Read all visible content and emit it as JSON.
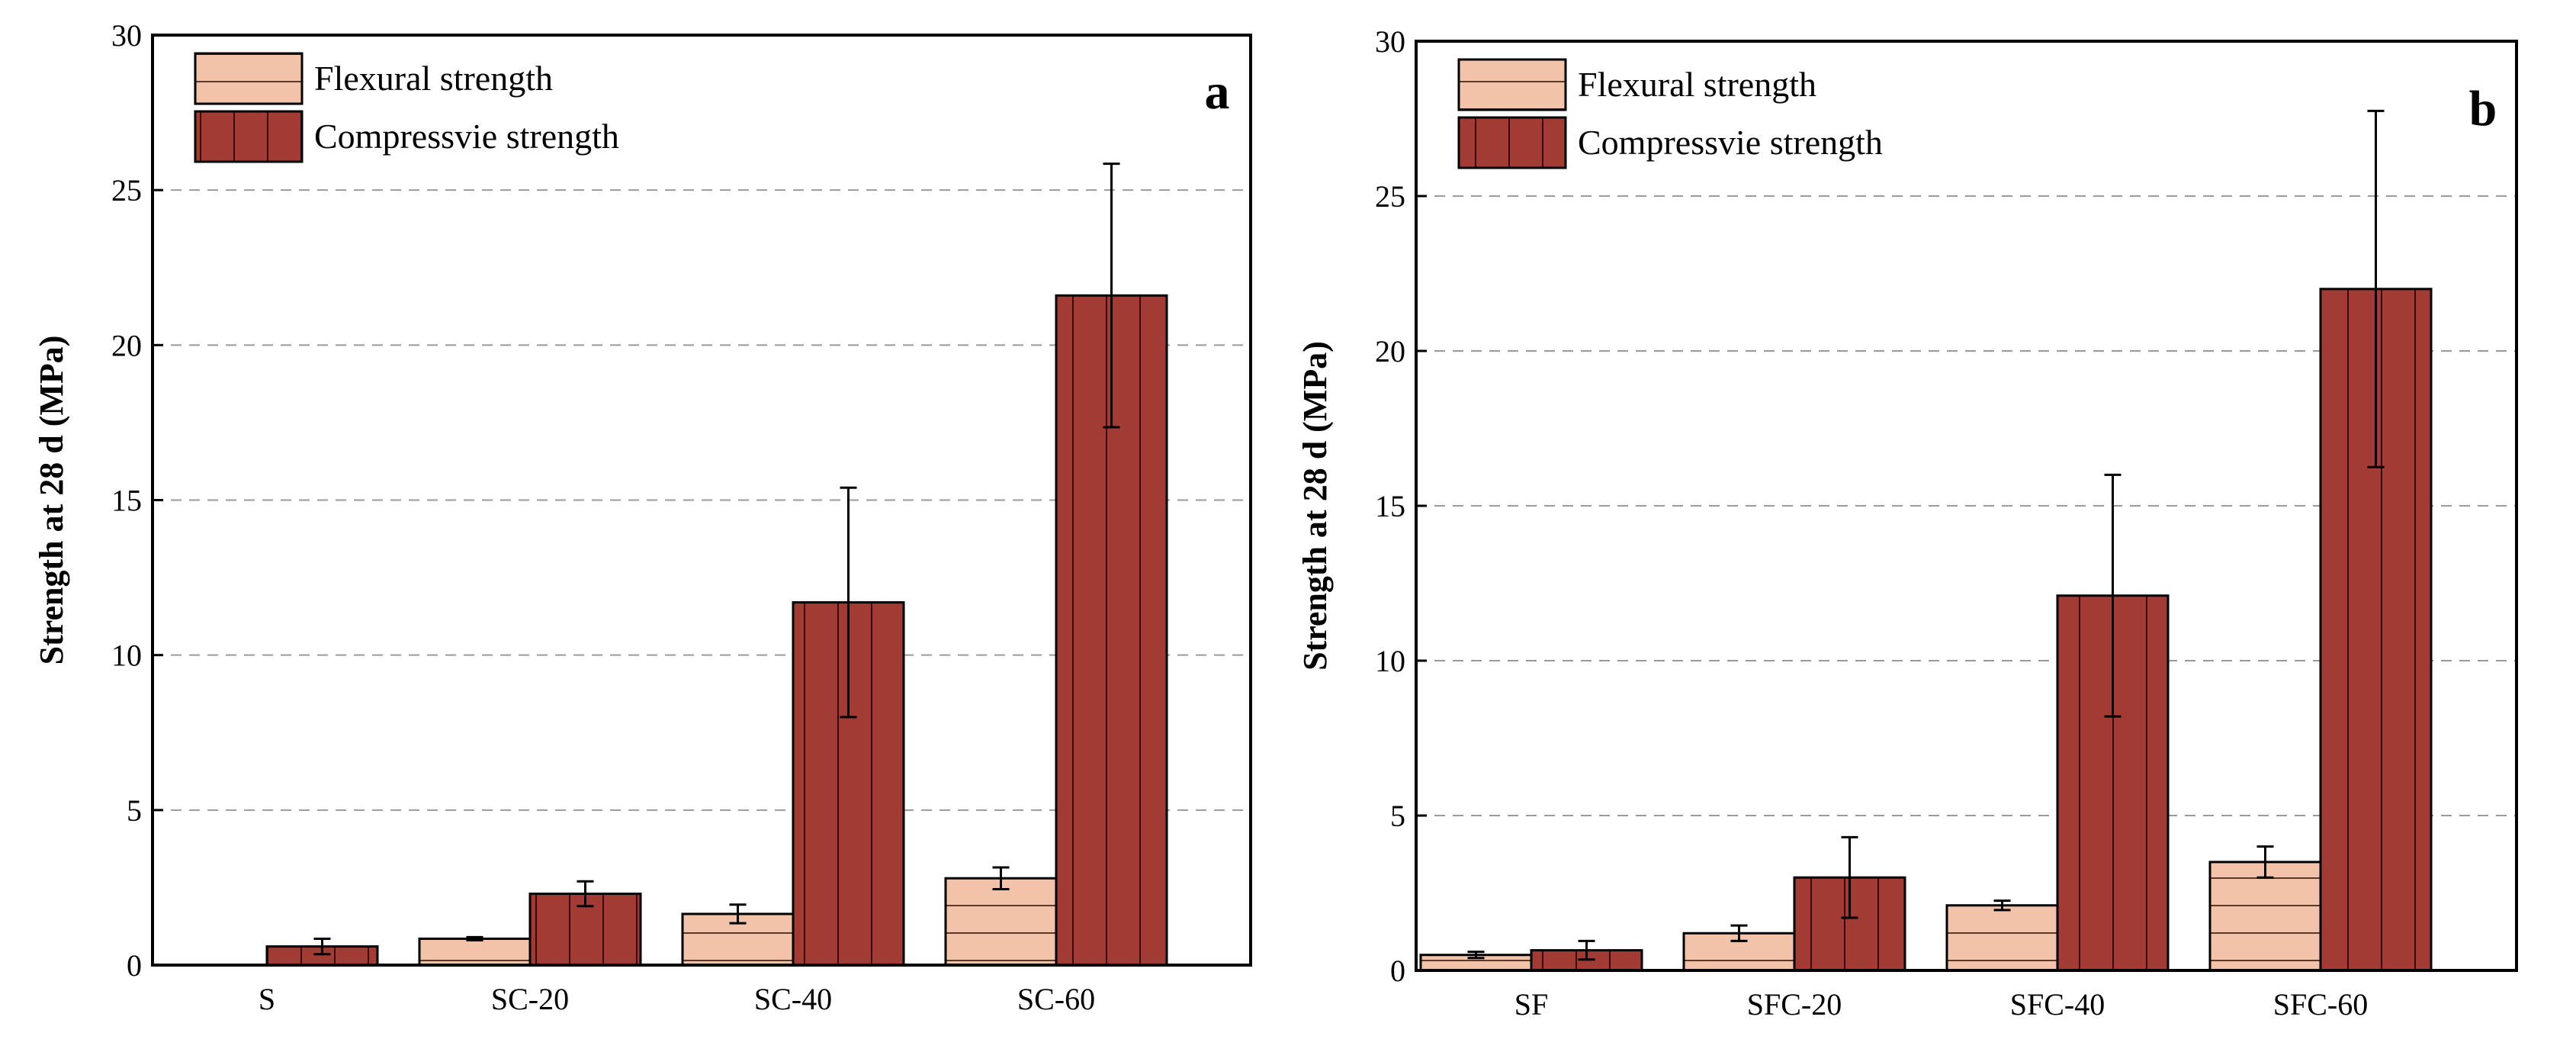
{
  "chart_data": [
    {
      "type": "bar",
      "panel_label": "a",
      "categories": [
        "S",
        "SC-20",
        "SC-40",
        "SC-60"
      ],
      "series": [
        {
          "name": "Flexural strength",
          "values": [
            0,
            0.85,
            1.65,
            2.8
          ],
          "errors": [
            0,
            0.05,
            0.3,
            0.35
          ],
          "color": "#f2c3a8",
          "hatch": "horizontal"
        },
        {
          "name": "Compressvie strength",
          "values": [
            0.6,
            2.3,
            11.7,
            21.6
          ],
          "errors": [
            0.25,
            0.4,
            3.7,
            4.25
          ],
          "color": "#a33b35",
          "hatch": "vertical"
        }
      ],
      "ylabel": "Strength at 28 d (MPa)",
      "ylim": [
        0,
        30
      ],
      "yticks": [
        "0",
        "5",
        "10",
        "15",
        "20",
        "25",
        "30"
      ],
      "legend_position": "top-left",
      "grid": "horizontal dashed"
    },
    {
      "type": "bar",
      "panel_label": "b",
      "categories": [
        "SF",
        "SFC-20",
        "SFC-40",
        "SFC-60"
      ],
      "series": [
        {
          "name": "Flexural strength",
          "values": [
            0.5,
            1.2,
            2.1,
            3.5
          ],
          "errors": [
            0.1,
            0.25,
            0.15,
            0.5
          ],
          "color": "#f2c3a8",
          "hatch": "horizontal"
        },
        {
          "name": "Compressvie strength",
          "values": [
            0.65,
            3.0,
            12.1,
            22.0
          ],
          "errors": [
            0.3,
            1.3,
            3.9,
            5.75
          ],
          "color": "#a33b35",
          "hatch": "vertical"
        }
      ],
      "ylabel": "Strength at 28 d (MPa)",
      "ylim": [
        0,
        30
      ],
      "yticks": [
        "0",
        "5",
        "10",
        "15",
        "20",
        "25",
        "30"
      ],
      "legend_position": "top-left",
      "grid": "horizontal dashed"
    }
  ]
}
